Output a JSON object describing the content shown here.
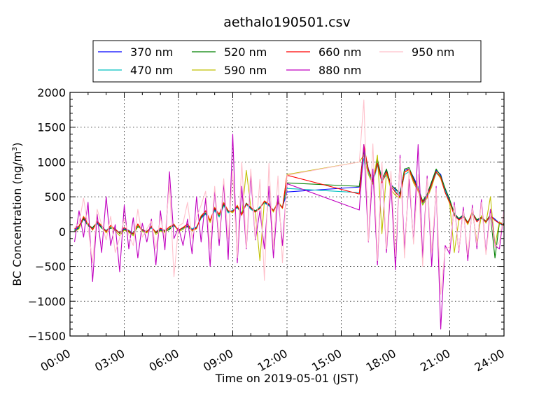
{
  "chart_data": {
    "type": "line",
    "title": "aethalo190501.csv",
    "xlabel": "Time on 2019-05-01 (JST)",
    "ylabel_main": "BC Concentration (ng/m",
    "ylabel_sup": "3",
    "ylabel_end": ")",
    "xlim": [
      0,
      24
    ],
    "ylim": [
      -1500,
      2000
    ],
    "grid": true,
    "legend_position": "top-center",
    "x_ticks": [
      0,
      3,
      6,
      9,
      12,
      15,
      18,
      21,
      24
    ],
    "x_tick_labels": [
      "00:00",
      "03:00",
      "06:00",
      "09:00",
      "12:00",
      "15:00",
      "18:00",
      "21:00",
      "24:00"
    ],
    "y_ticks": [
      -1500,
      -1000,
      -500,
      0,
      500,
      1000,
      1500,
      2000
    ],
    "y_tick_labels": [
      "−1500",
      "−1000",
      "−500",
      "0",
      "500",
      "1000",
      "1500",
      "2000"
    ],
    "x": [
      0.25,
      0.5,
      0.75,
      1.0,
      1.25,
      1.5,
      1.75,
      2.0,
      2.25,
      2.5,
      2.75,
      3.0,
      3.25,
      3.5,
      3.75,
      4.0,
      4.25,
      4.5,
      4.75,
      5.0,
      5.25,
      5.5,
      5.75,
      6.0,
      6.25,
      6.5,
      6.75,
      7.0,
      7.25,
      7.5,
      7.75,
      8.0,
      8.25,
      8.5,
      8.75,
      9.0,
      9.25,
      9.5,
      9.75,
      10.0,
      10.25,
      10.5,
      10.75,
      11.0,
      11.25,
      11.5,
      11.75,
      12.0,
      16.0,
      16.25,
      16.5,
      16.75,
      17.0,
      17.25,
      17.5,
      17.75,
      18.0,
      18.25,
      18.5,
      18.75,
      19.0,
      19.25,
      19.5,
      19.75,
      20.0,
      20.25,
      20.5,
      20.75,
      21.0,
      21.25,
      21.5,
      21.75,
      22.0,
      22.25,
      22.5,
      22.75,
      23.0,
      23.25,
      23.5,
      23.75,
      24.0
    ],
    "series": [
      {
        "name": "370 nm",
        "color": "#0000ff",
        "values": [
          20,
          60,
          180,
          90,
          40,
          120,
          70,
          10,
          60,
          30,
          -20,
          40,
          10,
          -30,
          80,
          20,
          0,
          60,
          -10,
          30,
          10,
          40,
          90,
          20,
          50,
          80,
          30,
          60,
          200,
          260,
          150,
          320,
          220,
          380,
          280,
          300,
          350,
          260,
          400,
          330,
          290,
          350,
          420,
          380,
          300,
          420,
          350,
          570,
          640,
          1200,
          900,
          720,
          1020,
          760,
          880,
          680,
          600,
          560,
          880,
          900,
          780,
          640,
          420,
          520,
          700,
          880,
          820,
          600,
          440,
          250,
          180,
          230,
          120,
          260,
          160,
          200,
          140,
          230,
          180,
          120,
          100
        ]
      },
      {
        "name": "470 nm",
        "color": "#00c0c0",
        "values": [
          30,
          70,
          200,
          100,
          50,
          110,
          60,
          20,
          70,
          20,
          -10,
          50,
          20,
          -20,
          90,
          10,
          10,
          50,
          0,
          40,
          20,
          50,
          80,
          30,
          40,
          90,
          40,
          70,
          190,
          250,
          160,
          300,
          210,
          370,
          270,
          310,
          340,
          270,
          390,
          320,
          280,
          360,
          410,
          370,
          310,
          400,
          360,
          620,
          560,
          1050,
          850,
          700,
          950,
          720,
          820,
          640,
          580,
          520,
          820,
          860,
          740,
          600,
          400,
          500,
          660,
          840,
          780,
          580,
          420,
          240,
          170,
          220,
          110,
          250,
          150,
          190,
          130,
          220,
          170,
          110,
          90
        ]
      },
      {
        "name": "520 nm",
        "color": "#008000",
        "values": [
          10,
          50,
          190,
          80,
          60,
          130,
          50,
          0,
          50,
          40,
          -30,
          30,
          0,
          -40,
          70,
          30,
          -10,
          70,
          -20,
          20,
          0,
          30,
          100,
          10,
          60,
          70,
          20,
          50,
          210,
          270,
          140,
          330,
          230,
          390,
          290,
          290,
          360,
          250,
          410,
          340,
          300,
          340,
          430,
          390,
          290,
          430,
          340,
          700,
          650,
          1150,
          880,
          740,
          1040,
          740,
          900,
          660,
          620,
          540,
          900,
          920,
          760,
          620,
          440,
          540,
          720,
          900,
          800,
          620,
          460,
          260,
          190,
          240,
          130,
          270,
          170,
          210,
          150,
          240,
          -380,
          130,
          110
        ]
      },
      {
        "name": "590 nm",
        "color": "#c0c000",
        "values": [
          0,
          40,
          220,
          120,
          20,
          150,
          90,
          -20,
          80,
          10,
          -60,
          20,
          -10,
          -60,
          100,
          0,
          -20,
          80,
          -40,
          10,
          -20,
          60,
          110,
          0,
          30,
          100,
          10,
          40,
          230,
          290,
          130,
          350,
          240,
          420,
          300,
          270,
          380,
          230,
          880,
          350,
          270,
          -420,
          440,
          400,
          280,
          450,
          330,
          820,
          1000,
          1100,
          820,
          680,
          1100,
          -30,
          850,
          600,
          520,
          480,
          860,
          880,
          700,
          580,
          380,
          480,
          640,
          860,
          760,
          560,
          400,
          -300,
          160,
          220,
          100,
          300,
          -150,
          230,
          120,
          500,
          -200,
          140,
          80
        ]
      },
      {
        "name": "660 nm",
        "color": "#ff0000",
        "values": [
          40,
          80,
          210,
          110,
          30,
          140,
          80,
          0,
          90,
          30,
          -20,
          60,
          10,
          -30,
          110,
          20,
          0,
          70,
          -10,
          50,
          10,
          70,
          100,
          20,
          60,
          110,
          20,
          50,
          220,
          300,
          160,
          340,
          250,
          410,
          300,
          290,
          370,
          240,
          400,
          350,
          280,
          330,
          440,
          390,
          300,
          410,
          340,
          810,
          540,
          1250,
          880,
          720,
          980,
          700,
          860,
          660,
          560,
          500,
          850,
          900,
          730,
          600,
          420,
          500,
          680,
          860,
          780,
          560,
          420,
          230,
          170,
          210,
          120,
          270,
          140,
          200,
          140,
          230,
          160,
          120,
          100
        ]
      },
      {
        "name": "880 nm",
        "color": "#c000c0",
        "values": [
          -150,
          300,
          -80,
          420,
          -720,
          250,
          -300,
          500,
          -200,
          100,
          -580,
          380,
          -250,
          200,
          -380,
          120,
          -150,
          180,
          -480,
          300,
          -260,
          860,
          -100,
          60,
          -200,
          180,
          -320,
          500,
          -150,
          480,
          -500,
          600,
          -200,
          700,
          -400,
          1400,
          -450,
          650,
          -250,
          800,
          -120,
          300,
          -250,
          650,
          -380,
          520,
          -200,
          690,
          310,
          1250,
          -150,
          900,
          -480,
          950,
          -300,
          700,
          -550,
          1100,
          -260,
          750,
          -150,
          1250,
          -380,
          800,
          -500,
          650,
          -1400,
          -200,
          -320,
          420,
          -300,
          350,
          -420,
          380,
          -250,
          460,
          -300,
          320,
          -200,
          -250,
          300
        ]
      },
      {
        "name": "950 nm",
        "color": "#ffc0cb",
        "values": [
          60,
          120,
          480,
          60,
          -450,
          320,
          100,
          -120,
          220,
          -300,
          -90,
          180,
          -50,
          -200,
          320,
          -80,
          40,
          150,
          -250,
          200,
          -100,
          700,
          -650,
          80,
          120,
          420,
          -100,
          200,
          380,
          580,
          -250,
          650,
          -100,
          760,
          -100,
          870,
          -380,
          1000,
          -230,
          900,
          -100,
          750,
          -700,
          980,
          -250,
          800,
          -450,
          810,
          1000,
          1890,
          -140,
          1260,
          -420,
          1000,
          -250,
          870,
          -350,
          1050,
          -380,
          900,
          -180,
          820,
          -500,
          760,
          -300,
          620,
          -900,
          -250,
          -220,
          380,
          -280,
          300,
          -330,
          340,
          -200,
          420,
          -330,
          260,
          -230,
          -150,
          280
        ]
      }
    ]
  }
}
